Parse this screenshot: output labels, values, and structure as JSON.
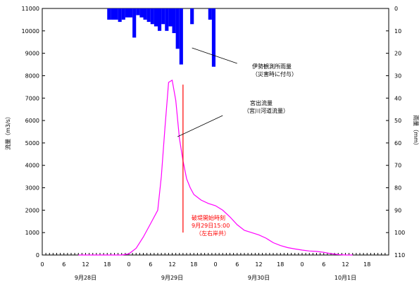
{
  "chart_data": {
    "type": "line",
    "x_ticks_hours": [
      "0",
      "6",
      "12",
      "18",
      "0",
      "6",
      "12",
      "18",
      "0",
      "6",
      "12",
      "18",
      "0",
      "6",
      "12",
      "18"
    ],
    "date_labels": [
      "9月28日",
      "9月29日",
      "9月30日",
      "10月1日"
    ],
    "y_left": {
      "label": "流量（m3/s）",
      "ylim": [
        0,
        11000
      ],
      "ticks": [
        "0",
        "1000",
        "2000",
        "3000",
        "4000",
        "5000",
        "6000",
        "7000",
        "8000",
        "9000",
        "10000",
        "11000"
      ]
    },
    "y_right": {
      "label": "雨量（mm）",
      "ylim": [
        0,
        110
      ],
      "inverted": true,
      "ticks": [
        "0",
        "10",
        "20",
        "30",
        "40",
        "50",
        "60",
        "70",
        "80",
        "90",
        "100",
        "110"
      ]
    },
    "x_range_hours": [
      0,
      96
    ],
    "series": [
      {
        "name": "宮川河道流量",
        "color": "#ff00ff",
        "x_hours": [
          10,
          18,
          22,
          24,
          26,
          28,
          30,
          32,
          33,
          34,
          35,
          36,
          37,
          38,
          39,
          40,
          41,
          42,
          44,
          46,
          48,
          50,
          52,
          54,
          56,
          58,
          60,
          62,
          64,
          66,
          68,
          70,
          72,
          74,
          76,
          78,
          80,
          82,
          84,
          86
        ],
        "values": [
          0,
          0,
          0,
          50,
          300,
          800,
          1400,
          2000,
          3500,
          5700,
          7700,
          7800,
          6900,
          5200,
          4200,
          3400,
          3000,
          2700,
          2450,
          2300,
          2200,
          2000,
          1700,
          1350,
          1100,
          1000,
          900,
          750,
          550,
          420,
          330,
          270,
          220,
          180,
          160,
          120,
          60,
          20,
          0,
          0
        ]
      },
      {
        "name": "伊勢観測所雨量",
        "color": "#0000ff",
        "type": "bar",
        "x_hours": [
          18,
          19,
          20,
          21,
          22,
          23,
          24,
          25,
          26,
          27,
          28,
          29,
          30,
          31,
          32,
          33,
          34,
          35,
          36,
          37,
          38,
          39,
          40,
          41,
          42,
          43,
          44,
          45,
          46,
          47
        ],
        "values": [
          5,
          5,
          5,
          6,
          5,
          4,
          4,
          13,
          3,
          4,
          5,
          6,
          7,
          8,
          10,
          7,
          10,
          8,
          11,
          18,
          25,
          0,
          0,
          7,
          0,
          0,
          0,
          0,
          5,
          26
        ]
      }
    ],
    "annotations": {
      "rain": [
        "伊勢観測所雨量",
        "（災害時に付与）"
      ],
      "flow": [
        "宮出流量",
        "（宮川河道流量）"
      ],
      "breach": [
        "破堤開始時刻",
        "9月29日15:00",
        "（左右岸共）"
      ]
    },
    "breach_x_hours": 39,
    "grid": false
  }
}
